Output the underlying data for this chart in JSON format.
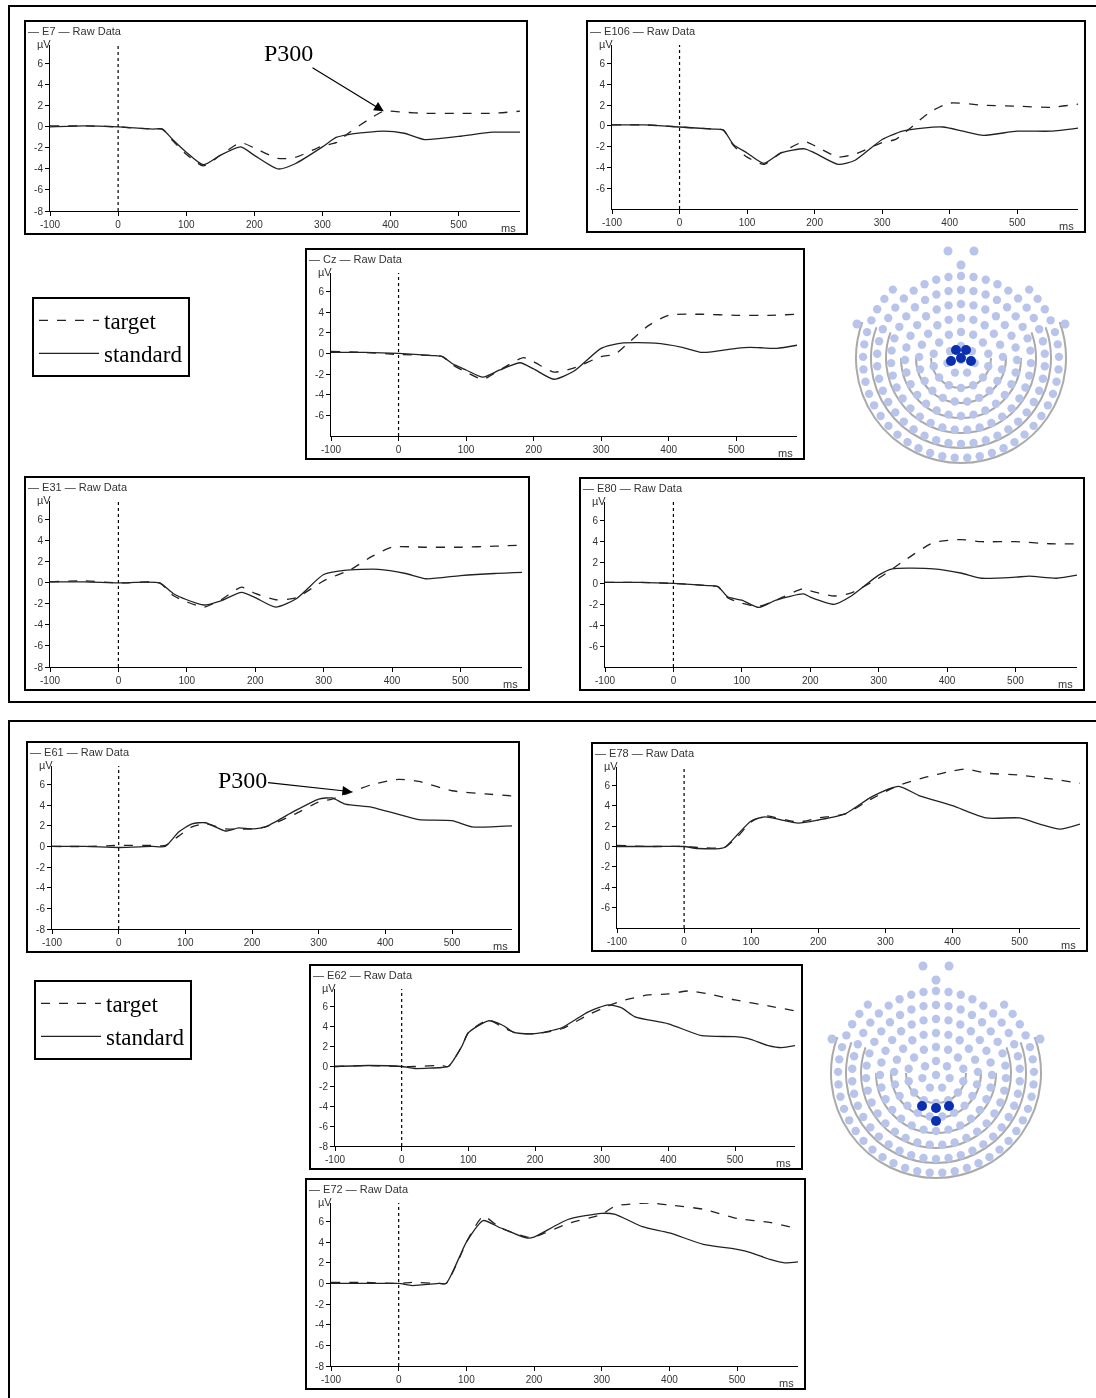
{
  "chart_data": [
    {
      "type": "line",
      "title": "— E7 — Raw Data",
      "xlabel": "ms",
      "ylabel": "µV",
      "xlim": [
        -100,
        590
      ],
      "xticks": [
        -100,
        0,
        100,
        200,
        300,
        400,
        500
      ],
      "ylim": [
        -8,
        7.8
      ],
      "yticks": [
        -8,
        -6,
        -4,
        -2,
        0,
        2,
        4,
        6
      ],
      "ref_lines": [
        {
          "axis": "x",
          "value": 0,
          "line_style": "dotted",
          "color": "#000000"
        }
      ],
      "annotations": [
        {
          "text": "P300",
          "x": 390,
          "y": 1.5
        }
      ],
      "series": [
        {
          "line_style": "dashed",
          "color": "#222222",
          "x": [
            -100,
            -50,
            0,
            50,
            65,
            80,
            100,
            125,
            150,
            180,
            200,
            235,
            260,
            300,
            320,
            340,
            370,
            390,
            420,
            450,
            500,
            550,
            590
          ],
          "values": [
            0.1,
            0.1,
            0,
            -0.2,
            -0.2,
            -1.3,
            -2.6,
            -3.7,
            -2.7,
            -1.5,
            -2.0,
            -3.0,
            -2.9,
            -1.8,
            -1.5,
            -0.5,
            0.8,
            1.5,
            1.4,
            1.3,
            1.3,
            1.3,
            1.5
          ]
        },
        {
          "line_style": "solid",
          "color": "#222222",
          "x": [
            -100,
            -50,
            0,
            50,
            65,
            80,
            100,
            125,
            150,
            180,
            200,
            235,
            260,
            300,
            320,
            340,
            390,
            420,
            450,
            500,
            550,
            590
          ],
          "values": [
            0,
            0.1,
            0,
            -0.2,
            -0.2,
            -1.2,
            -2.4,
            -3.6,
            -2.7,
            -1.9,
            -2.7,
            -4.0,
            -3.5,
            -1.9,
            -1.0,
            -0.7,
            -0.4,
            -0.6,
            -1.2,
            -0.9,
            -0.5,
            -0.5
          ]
        }
      ]
    },
    {
      "type": "line",
      "title": "— E106 — Raw Data",
      "xlabel": "ms",
      "ylabel": "µV",
      "xlim": [
        -100,
        590
      ],
      "xticks": [
        -100,
        0,
        100,
        200,
        300,
        400,
        500
      ],
      "ylim": [
        -8,
        7.8
      ],
      "yticks": [
        -6,
        -4,
        -2,
        0,
        2,
        4,
        6
      ],
      "ref_lines": [
        {
          "axis": "x",
          "value": 0,
          "line_style": "dotted",
          "color": "#000000"
        }
      ],
      "series": [
        {
          "line_style": "dashed",
          "color": "#222222",
          "x": [
            -100,
            -50,
            0,
            50,
            65,
            80,
            100,
            125,
            150,
            185,
            200,
            235,
            260,
            300,
            320,
            340,
            370,
            400,
            450,
            500,
            550,
            590
          ],
          "values": [
            0.1,
            0.1,
            -0.1,
            -0.3,
            -0.4,
            -1.9,
            -3.0,
            -3.7,
            -2.6,
            -1.5,
            -1.9,
            -3.0,
            -2.7,
            -1.6,
            -1.3,
            -0.3,
            1.3,
            2.2,
            2.0,
            1.9,
            1.8,
            2.1
          ]
        },
        {
          "line_style": "solid",
          "color": "#222222",
          "x": [
            -100,
            -50,
            0,
            50,
            65,
            80,
            100,
            125,
            150,
            185,
            200,
            235,
            260,
            300,
            330,
            360,
            390,
            420,
            450,
            500,
            550,
            590
          ],
          "values": [
            0.1,
            0.1,
            -0.1,
            -0.3,
            -0.4,
            -1.8,
            -2.6,
            -3.6,
            -2.6,
            -2.2,
            -2.6,
            -3.7,
            -3.3,
            -1.3,
            -0.5,
            -0.2,
            -0.1,
            -0.5,
            -0.9,
            -0.5,
            -0.5,
            -0.2
          ]
        }
      ]
    },
    {
      "type": "line",
      "title": "— Cz — Raw Data",
      "xlabel": "ms",
      "ylabel": "µV",
      "xlim": [
        -100,
        590
      ],
      "xticks": [
        -100,
        0,
        100,
        200,
        300,
        400,
        500
      ],
      "ylim": [
        -8,
        7.8
      ],
      "yticks": [
        -6,
        -4,
        -2,
        0,
        2,
        4,
        6
      ],
      "ref_lines": [
        {
          "axis": "x",
          "value": 0,
          "line_style": "dotted",
          "color": "#000000"
        }
      ],
      "legend": "left",
      "series": [
        {
          "name": "target",
          "line_style": "dashed",
          "color": "#222222",
          "x": [
            -100,
            -50,
            0,
            50,
            65,
            80,
            100,
            125,
            150,
            185,
            200,
            230,
            260,
            300,
            320,
            340,
            370,
            400,
            450,
            500,
            550,
            590
          ],
          "values": [
            0.2,
            0.1,
            -0.1,
            -0.2,
            -0.3,
            -1.1,
            -1.8,
            -2.5,
            -1.6,
            -0.4,
            -0.8,
            -1.8,
            -1.4,
            -0.3,
            -0.1,
            1.0,
            2.7,
            3.7,
            3.8,
            3.7,
            3.7,
            3.8
          ]
        },
        {
          "name": "standard",
          "line_style": "solid",
          "color": "#222222",
          "x": [
            -100,
            -50,
            0,
            50,
            65,
            80,
            100,
            125,
            150,
            180,
            200,
            230,
            260,
            300,
            330,
            380,
            420,
            450,
            500,
            520,
            560,
            590
          ],
          "values": [
            0.1,
            0.1,
            0,
            -0.2,
            -0.3,
            -1.0,
            -1.6,
            -2.3,
            -1.6,
            -0.9,
            -1.5,
            -2.5,
            -1.7,
            0.5,
            1.0,
            1.0,
            0.6,
            0.1,
            0.5,
            0.6,
            0.5,
            0.8
          ]
        }
      ]
    },
    {
      "type": "line",
      "title": "— E31 — Raw Data",
      "xlabel": "ms",
      "ylabel": "µV",
      "xlim": [
        -100,
        590
      ],
      "xticks": [
        -100,
        0,
        100,
        200,
        300,
        400,
        500
      ],
      "ylim": [
        -8,
        7.8
      ],
      "yticks": [
        -8,
        -6,
        -4,
        -2,
        0,
        2,
        4,
        6
      ],
      "ref_lines": [
        {
          "axis": "x",
          "value": 0,
          "line_style": "dotted",
          "color": "#000000"
        }
      ],
      "series": [
        {
          "line_style": "dashed",
          "color": "#222222",
          "x": [
            -100,
            -50,
            0,
            60,
            80,
            100,
            125,
            150,
            180,
            200,
            230,
            260,
            300,
            340,
            370,
            400,
            450,
            500,
            550,
            590
          ],
          "values": [
            0.1,
            0.2,
            0,
            0,
            -1.2,
            -1.8,
            -2.3,
            -1.6,
            -0.4,
            -1.0,
            -1.6,
            -1.4,
            0.2,
            1.3,
            2.5,
            3.4,
            3.4,
            3.4,
            3.5,
            3.6
          ]
        },
        {
          "line_style": "solid",
          "color": "#222222",
          "x": [
            -100,
            -50,
            0,
            60,
            80,
            100,
            125,
            150,
            180,
            200,
            230,
            260,
            300,
            330,
            380,
            420,
            450,
            500,
            550,
            590
          ],
          "values": [
            0.1,
            0.1,
            0,
            0,
            -1.0,
            -1.6,
            -2.1,
            -1.7,
            -0.9,
            -1.4,
            -2.3,
            -1.5,
            0.8,
            1.2,
            1.3,
            0.9,
            0.4,
            0.7,
            0.9,
            1.0
          ]
        }
      ]
    },
    {
      "type": "line",
      "title": "— E80 — Raw Data",
      "xlabel": "ms",
      "ylabel": "µV",
      "xlim": [
        -100,
        590
      ],
      "xticks": [
        -100,
        0,
        100,
        200,
        300,
        400,
        500
      ],
      "ylim": [
        -8,
        7.8
      ],
      "yticks": [
        -6,
        -4,
        -2,
        0,
        2,
        4,
        6
      ],
      "ref_lines": [
        {
          "axis": "x",
          "value": 0,
          "line_style": "dotted",
          "color": "#000000"
        }
      ],
      "series": [
        {
          "line_style": "dashed",
          "color": "#222222",
          "x": [
            -100,
            -50,
            0,
            50,
            65,
            80,
            100,
            125,
            150,
            190,
            200,
            235,
            260,
            300,
            340,
            380,
            420,
            450,
            500,
            550,
            590
          ],
          "values": [
            0.1,
            0.1,
            0,
            -0.2,
            -0.3,
            -1.4,
            -1.9,
            -2.2,
            -1.6,
            -0.5,
            -0.7,
            -1.2,
            -0.9,
            0.5,
            2.3,
            3.9,
            4.2,
            4.0,
            4.0,
            3.8,
            3.8
          ]
        },
        {
          "line_style": "solid",
          "color": "#222222",
          "x": [
            -100,
            -50,
            0,
            50,
            65,
            80,
            100,
            125,
            150,
            190,
            200,
            235,
            260,
            300,
            320,
            380,
            420,
            450,
            500,
            520,
            560,
            590
          ],
          "values": [
            0.1,
            0.1,
            0,
            -0.2,
            -0.3,
            -1.3,
            -1.6,
            -2.3,
            -1.6,
            -1.0,
            -1.3,
            -2.0,
            -1.2,
            0.8,
            1.4,
            1.4,
            1.0,
            0.5,
            0.6,
            0.7,
            0.5,
            0.8
          ]
        }
      ]
    },
    {
      "type": "line",
      "title": "— E61 — Raw Data",
      "xlabel": "ms",
      "ylabel": "µV",
      "xlim": [
        -100,
        590
      ],
      "xticks": [
        -100,
        0,
        100,
        200,
        300,
        400,
        500
      ],
      "ylim": [
        -8,
        7.8
      ],
      "yticks": [
        -8,
        -6,
        -4,
        -2,
        0,
        2,
        4,
        6
      ],
      "ref_lines": [
        {
          "axis": "x",
          "value": 0,
          "line_style": "dotted",
          "color": "#000000"
        }
      ],
      "annotations": [
        {
          "text": "P300",
          "x": 350,
          "y": 5.3
        }
      ],
      "series": [
        {
          "line_style": "dashed",
          "color": "#222222",
          "x": [
            -100,
            -50,
            0,
            50,
            70,
            90,
            110,
            130,
            160,
            180,
            200,
            220,
            260,
            300,
            320,
            350,
            380,
            420,
            450,
            500,
            550,
            590
          ],
          "values": [
            0,
            0,
            0.1,
            0.1,
            0.1,
            1.0,
            1.9,
            2.2,
            1.7,
            1.7,
            1.7,
            1.9,
            3.0,
            4.3,
            4.6,
            5.3,
            6.0,
            6.5,
            6.3,
            5.4,
            5.1,
            4.9
          ]
        },
        {
          "line_style": "solid",
          "color": "#222222",
          "x": [
            -100,
            -50,
            0,
            50,
            70,
            90,
            110,
            130,
            160,
            180,
            200,
            220,
            260,
            300,
            320,
            340,
            380,
            420,
            450,
            500,
            530,
            590
          ],
          "values": [
            0,
            0,
            -0.1,
            0,
            0,
            1.4,
            2.2,
            2.3,
            1.5,
            1.8,
            1.7,
            1.9,
            3.3,
            4.6,
            4.7,
            4.1,
            3.8,
            3.1,
            2.6,
            2.5,
            1.9,
            2.0
          ]
        }
      ]
    },
    {
      "type": "line",
      "title": "— E78 — Raw Data",
      "xlabel": "ms",
      "ylabel": "µV",
      "xlim": [
        -100,
        590
      ],
      "xticks": [
        -100,
        0,
        100,
        200,
        300,
        400,
        500
      ],
      "ylim": [
        -8,
        7.8
      ],
      "yticks": [
        -6,
        -4,
        -2,
        0,
        2,
        4,
        6
      ],
      "ref_lines": [
        {
          "axis": "x",
          "value": 0,
          "line_style": "dotted",
          "color": "#000000"
        }
      ],
      "series": [
        {
          "line_style": "dashed",
          "color": "#222222",
          "x": [
            -100,
            -50,
            0,
            20,
            60,
            80,
            100,
            120,
            170,
            200,
            240,
            280,
            320,
            360,
            400,
            420,
            450,
            500,
            550,
            590
          ],
          "values": [
            0.1,
            0,
            0,
            -0.1,
            -0.1,
            1.0,
            2.4,
            3.0,
            2.4,
            2.8,
            3.2,
            4.7,
            6.0,
            6.8,
            7.4,
            7.6,
            7.2,
            7.0,
            6.6,
            6.2
          ]
        },
        {
          "line_style": "solid",
          "color": "#222222",
          "x": [
            -100,
            -50,
            0,
            20,
            60,
            80,
            100,
            120,
            170,
            200,
            240,
            280,
            320,
            350,
            400,
            450,
            500,
            530,
            560,
            590
          ],
          "values": [
            0,
            0,
            0,
            -0.2,
            -0.1,
            1.2,
            2.5,
            2.9,
            2.3,
            2.6,
            3.2,
            4.9,
            5.9,
            5.0,
            4.0,
            2.8,
            2.8,
            2.2,
            1.7,
            2.2
          ]
        }
      ]
    },
    {
      "type": "line",
      "title": "— E62 — Raw Data",
      "xlabel": "ms",
      "ylabel": "µV",
      "xlim": [
        -100,
        590
      ],
      "xticks": [
        -100,
        0,
        100,
        200,
        300,
        400,
        500
      ],
      "ylim": [
        -8,
        7.8
      ],
      "yticks": [
        -8,
        -6,
        -4,
        -2,
        0,
        2,
        4,
        6
      ],
      "ref_lines": [
        {
          "axis": "x",
          "value": 0,
          "line_style": "dotted",
          "color": "#000000"
        }
      ],
      "legend": "left",
      "series": [
        {
          "name": "target",
          "line_style": "dashed",
          "color": "#222222",
          "x": [
            -100,
            -50,
            0,
            20,
            60,
            70,
            90,
            100,
            130,
            150,
            170,
            200,
            240,
            280,
            310,
            330,
            370,
            400,
            430,
            460,
            500,
            550,
            590
          ],
          "values": [
            0,
            0.1,
            0,
            0,
            0.1,
            0,
            2.0,
            3.4,
            4.7,
            4.0,
            3.4,
            3.3,
            3.8,
            5.2,
            6.1,
            6.6,
            7.2,
            7.3,
            7.6,
            7.3,
            6.7,
            6.1,
            5.6
          ]
        },
        {
          "name": "standard",
          "line_style": "solid",
          "color": "#222222",
          "x": [
            -100,
            -50,
            0,
            20,
            60,
            70,
            90,
            100,
            130,
            150,
            170,
            200,
            240,
            280,
            310,
            330,
            350,
            400,
            450,
            500,
            520,
            550,
            570,
            590
          ],
          "values": [
            0,
            0.1,
            0,
            -0.2,
            -0.1,
            0,
            2.0,
            3.4,
            4.6,
            4.2,
            3.4,
            3.3,
            3.9,
            5.5,
            6.2,
            5.9,
            5.0,
            4.3,
            3.1,
            3.0,
            2.8,
            2.1,
            1.9,
            2.1
          ]
        }
      ]
    },
    {
      "type": "line",
      "title": "— E72 — Raw Data",
      "xlabel": "ms",
      "ylabel": "µV",
      "xlim": [
        -100,
        590
      ],
      "xticks": [
        -100,
        0,
        100,
        200,
        300,
        400,
        500
      ],
      "ylim": [
        -8,
        7.8
      ],
      "yticks": [
        -8,
        -6,
        -4,
        -2,
        0,
        2,
        4,
        6
      ],
      "ref_lines": [
        {
          "axis": "x",
          "value": 0,
          "line_style": "dotted",
          "color": "#000000"
        }
      ],
      "series": [
        {
          "line_style": "dashed",
          "color": "#222222",
          "x": [
            -100,
            -50,
            0,
            20,
            60,
            70,
            90,
            100,
            125,
            150,
            190,
            200,
            250,
            300,
            320,
            370,
            400,
            450,
            500,
            550,
            590
          ],
          "values": [
            0.1,
            0.1,
            0,
            0.1,
            0,
            0,
            2.5,
            4.0,
            6.5,
            5.4,
            4.5,
            4.5,
            5.8,
            6.7,
            7.5,
            7.8,
            7.6,
            7.2,
            6.3,
            5.9,
            5.3
          ]
        },
        {
          "line_style": "solid",
          "color": "#222222",
          "x": [
            -100,
            -50,
            0,
            20,
            60,
            70,
            90,
            100,
            125,
            150,
            190,
            200,
            250,
            300,
            320,
            360,
            400,
            450,
            500,
            520,
            550,
            570,
            590
          ],
          "values": [
            0,
            0,
            0,
            -0.2,
            0,
            0,
            2.6,
            4.0,
            6.1,
            5.4,
            4.4,
            4.5,
            6.2,
            6.8,
            6.7,
            5.5,
            4.9,
            3.8,
            3.3,
            3.0,
            2.3,
            2.0,
            2.1
          ]
        }
      ]
    }
  ]
}
